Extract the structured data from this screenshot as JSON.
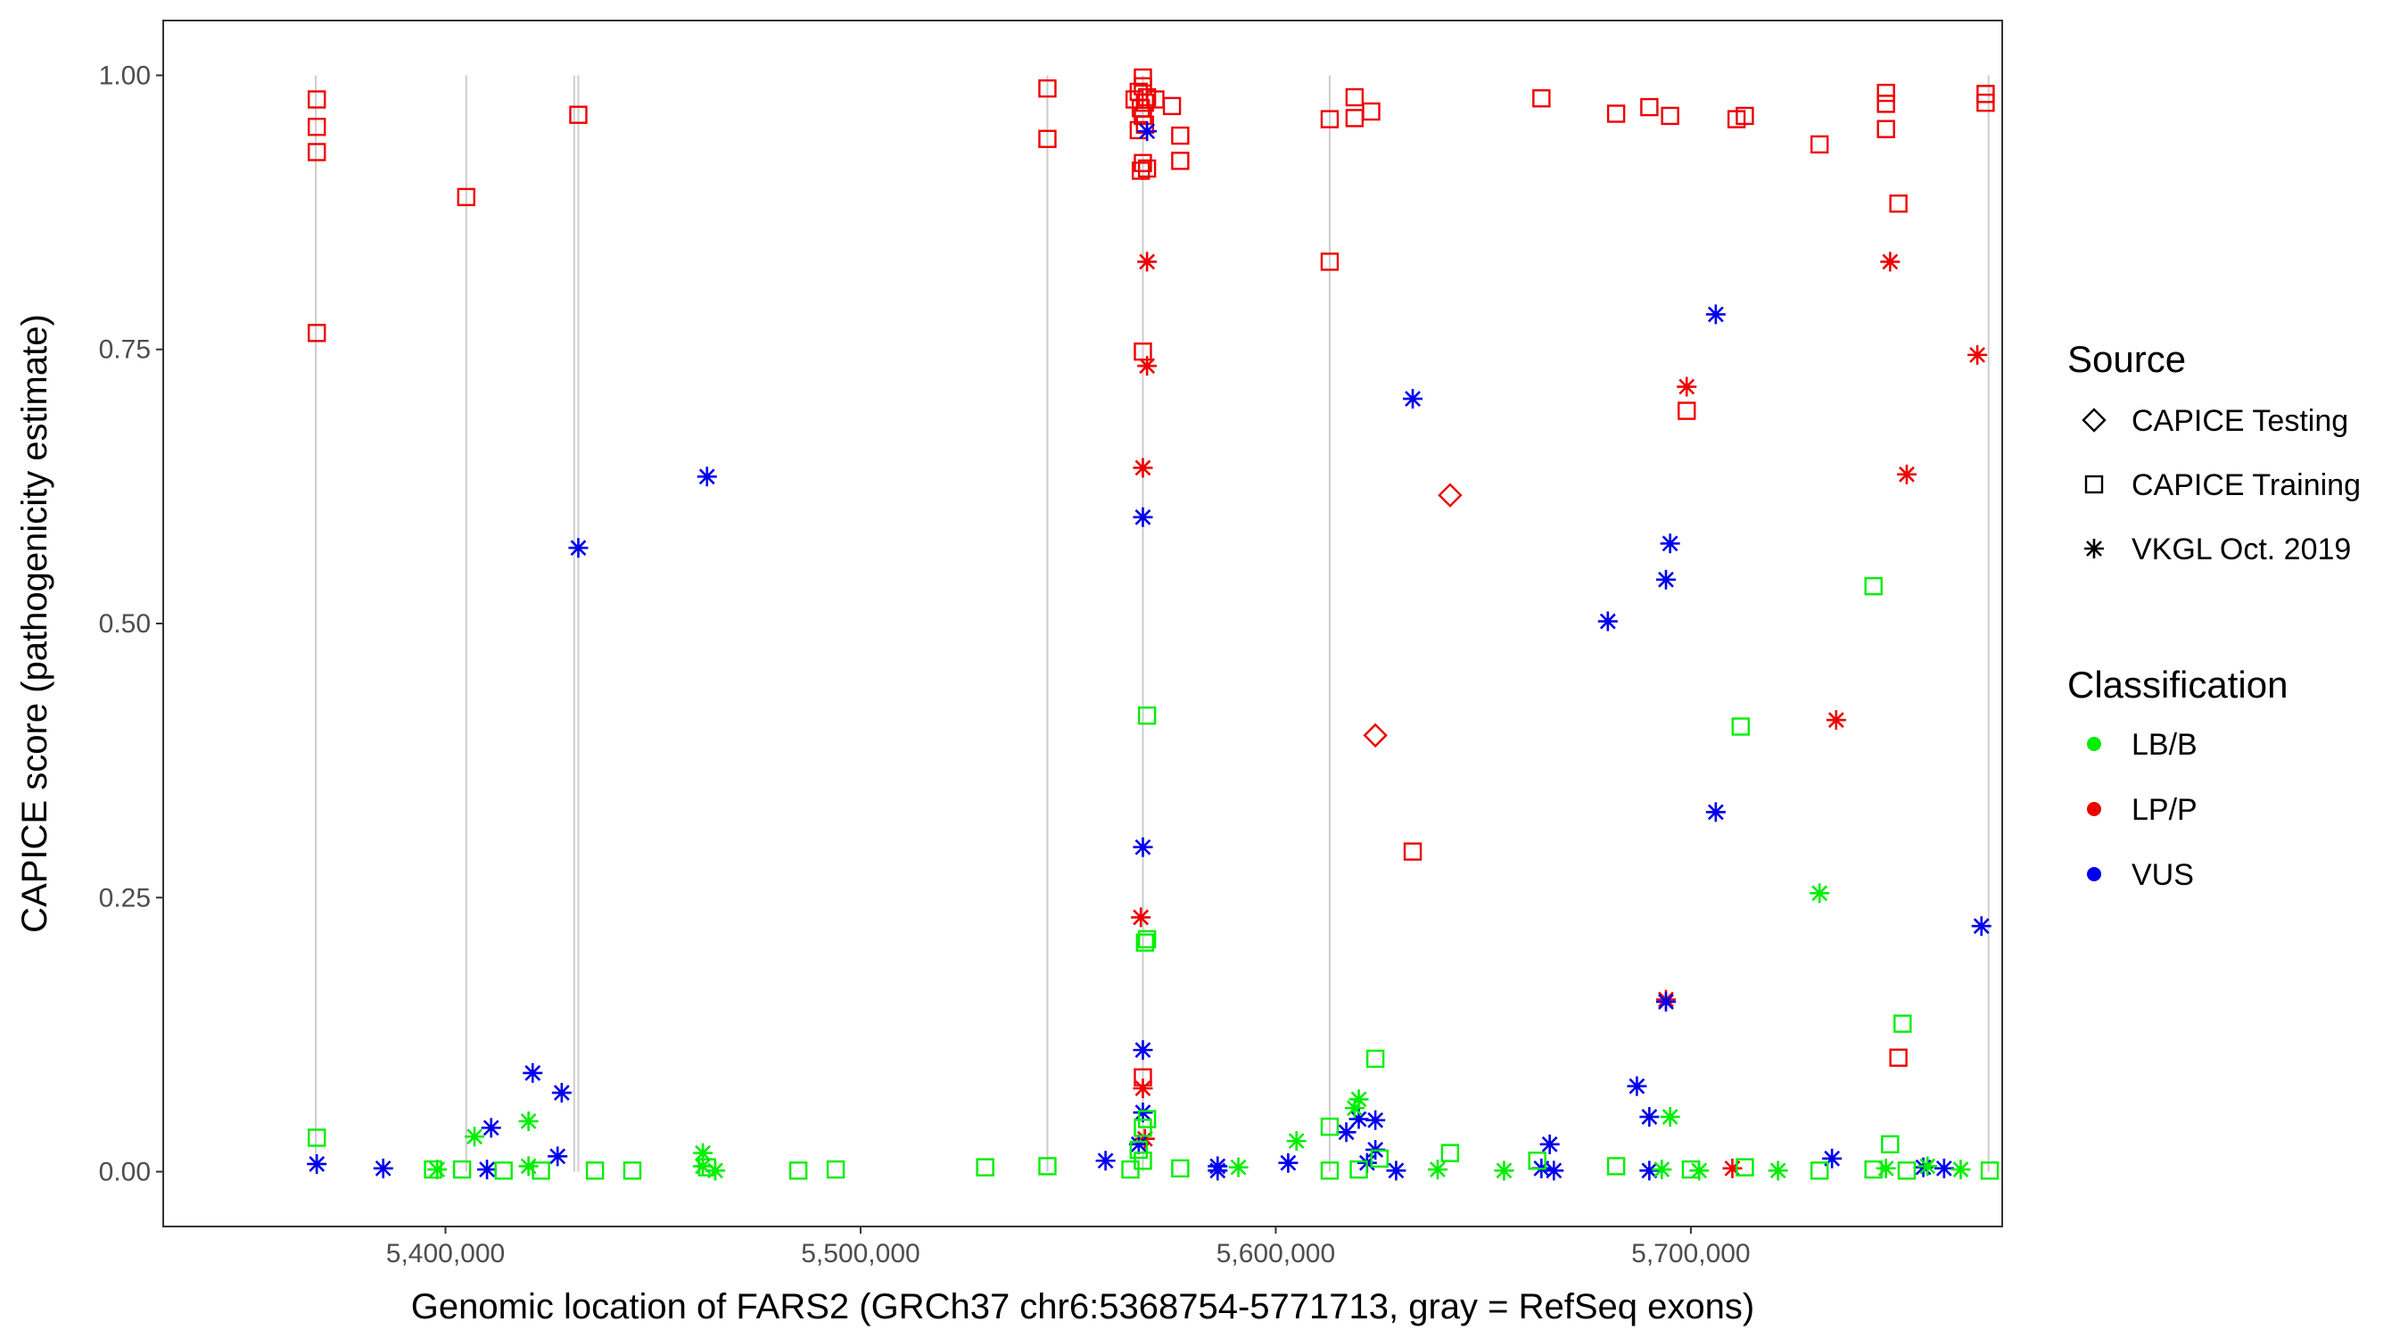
{
  "chart_data": {
    "type": "scatter",
    "xlabel": "Genomic location of FARS2 (GRCh37 chr6:5368754-5771713, gray = RefSeq exons)",
    "ylabel": "CAPICE score (pathogenicity estimate)",
    "xlim": [
      5332000,
      5775000
    ],
    "ylim": [
      -0.05,
      1.05
    ],
    "xticks": [
      5400000,
      5500000,
      5600000,
      5700000
    ],
    "xtick_labels": [
      "5,400,000",
      "5,500,000",
      "5,600,000",
      "5,700,000"
    ],
    "yticks": [
      0,
      0.25,
      0.5,
      0.75,
      1
    ],
    "ytick_labels": [
      "0.00",
      "0.25",
      "0.50",
      "0.75",
      "1.00"
    ],
    "exon_positions": [
      5368754,
      5405000,
      5431000,
      5432000,
      5545000,
      5568000,
      5613000,
      5771713
    ],
    "legend": {
      "source_title": "Source",
      "source_items": [
        {
          "key": "testing",
          "label": "CAPICE Testing",
          "shape": "diamond"
        },
        {
          "key": "training",
          "label": "CAPICE Training",
          "shape": "square"
        },
        {
          "key": "vkgl",
          "label": "VKGL Oct. 2019",
          "shape": "asterisk"
        }
      ],
      "class_title": "Classification",
      "class_items": [
        {
          "key": "LB/B",
          "label": "LB/B",
          "color": "#00ee00"
        },
        {
          "key": "LP/P",
          "label": "LP/P",
          "color": "#ee0000"
        },
        {
          "key": "VUS",
          "label": "VUS",
          "color": "#0000ee"
        }
      ]
    },
    "colors": {
      "LB/B": "#00ee00",
      "LP/P": "#ee0000",
      "VUS": "#0000ee",
      "exon": "#cccccc"
    },
    "points": [
      [
        5369000,
        0.978,
        "training",
        "LP/P"
      ],
      [
        5369000,
        0.953,
        "training",
        "LP/P"
      ],
      [
        5369000,
        0.93,
        "training",
        "LP/P"
      ],
      [
        5369000,
        0.765,
        "training",
        "LP/P"
      ],
      [
        5405000,
        0.889,
        "training",
        "LP/P"
      ],
      [
        5432000,
        0.964,
        "training",
        "LP/P"
      ],
      [
        5545000,
        0.988,
        "training",
        "LP/P"
      ],
      [
        5545000,
        0.942,
        "training",
        "LP/P"
      ],
      [
        5566000,
        0.978,
        "training",
        "LP/P"
      ],
      [
        5567000,
        0.985,
        "training",
        "LP/P"
      ],
      [
        5568000,
        0.998,
        "training",
        "LP/P"
      ],
      [
        5568000,
        0.99,
        "training",
        "LP/P"
      ],
      [
        5568500,
        0.975,
        "training",
        "LP/P"
      ],
      [
        5567500,
        0.97,
        "training",
        "LP/P"
      ],
      [
        5569000,
        0.98,
        "training",
        "LP/P"
      ],
      [
        5568000,
        0.963,
        "training",
        "LP/P"
      ],
      [
        5567000,
        0.95,
        "training",
        "LP/P"
      ],
      [
        5568500,
        0.955,
        "training",
        "LP/P"
      ],
      [
        5568000,
        0.92,
        "training",
        "LP/P"
      ],
      [
        5569000,
        0.915,
        "training",
        "LP/P"
      ],
      [
        5567500,
        0.913,
        "training",
        "LP/P"
      ],
      [
        5571000,
        0.978,
        "training",
        "LP/P"
      ],
      [
        5575000,
        0.972,
        "training",
        "LP/P"
      ],
      [
        5577000,
        0.945,
        "training",
        "LP/P"
      ],
      [
        5577000,
        0.922,
        "training",
        "LP/P"
      ],
      [
        5568000,
        0.748,
        "training",
        "LP/P"
      ],
      [
        5613000,
        0.96,
        "training",
        "LP/P"
      ],
      [
        5619000,
        0.98,
        "training",
        "LP/P"
      ],
      [
        5619000,
        0.961,
        "training",
        "LP/P"
      ],
      [
        5623000,
        0.967,
        "training",
        "LP/P"
      ],
      [
        5613000,
        0.83,
        "training",
        "LP/P"
      ],
      [
        5664000,
        0.979,
        "training",
        "LP/P"
      ],
      [
        5682000,
        0.965,
        "training",
        "LP/P"
      ],
      [
        5690000,
        0.971,
        "training",
        "LP/P"
      ],
      [
        5695000,
        0.963,
        "training",
        "LP/P"
      ],
      [
        5711000,
        0.96,
        "training",
        "LP/P"
      ],
      [
        5713000,
        0.963,
        "training",
        "LP/P"
      ],
      [
        5699000,
        0.694,
        "training",
        "LP/P"
      ],
      [
        5731000,
        0.937,
        "training",
        "LP/P"
      ],
      [
        5747000,
        0.984,
        "training",
        "LP/P"
      ],
      [
        5747000,
        0.974,
        "training",
        "LP/P"
      ],
      [
        5747000,
        0.951,
        "training",
        "LP/P"
      ],
      [
        5750000,
        0.883,
        "training",
        "LP/P"
      ],
      [
        5771000,
        0.983,
        "training",
        "LP/P"
      ],
      [
        5771000,
        0.975,
        "training",
        "LP/P"
      ],
      [
        5633000,
        0.292,
        "training",
        "LP/P"
      ],
      [
        5568000,
        0.086,
        "training",
        "LP/P"
      ],
      [
        5750000,
        0.104,
        "training",
        "LP/P"
      ],
      [
        5569000,
        0.83,
        "vkgl",
        "LP/P"
      ],
      [
        5569000,
        0.735,
        "vkgl",
        "LP/P"
      ],
      [
        5568000,
        0.642,
        "vkgl",
        "LP/P"
      ],
      [
        5567500,
        0.232,
        "vkgl",
        "LP/P"
      ],
      [
        5568000,
        0.076,
        "vkgl",
        "LP/P"
      ],
      [
        5568500,
        0.03,
        "vkgl",
        "LP/P"
      ],
      [
        5699000,
        0.716,
        "vkgl",
        "LP/P"
      ],
      [
        5748000,
        0.83,
        "vkgl",
        "LP/P"
      ],
      [
        5752000,
        0.636,
        "vkgl",
        "LP/P"
      ],
      [
        5769000,
        0.745,
        "vkgl",
        "LP/P"
      ],
      [
        5735000,
        0.412,
        "vkgl",
        "LP/P"
      ],
      [
        5694000,
        0.157,
        "vkgl",
        "LP/P"
      ],
      [
        5710000,
        0.003,
        "vkgl",
        "LP/P"
      ],
      [
        5642000,
        0.617,
        "testing",
        "LP/P"
      ],
      [
        5624000,
        0.398,
        "testing",
        "LP/P"
      ],
      [
        5569000,
        0.949,
        "vkgl",
        "VUS"
      ],
      [
        5568000,
        0.597,
        "vkgl",
        "VUS"
      ],
      [
        5568000,
        0.296,
        "vkgl",
        "VUS"
      ],
      [
        5568000,
        0.111,
        "vkgl",
        "VUS"
      ],
      [
        5568000,
        0.054,
        "vkgl",
        "VUS"
      ],
      [
        5567000,
        0.025,
        "vkgl",
        "VUS"
      ],
      [
        5463000,
        0.634,
        "vkgl",
        "VUS"
      ],
      [
        5432000,
        0.569,
        "vkgl",
        "VUS"
      ],
      [
        5633000,
        0.705,
        "vkgl",
        "VUS"
      ],
      [
        5706000,
        0.782,
        "vkgl",
        "VUS"
      ],
      [
        5695000,
        0.573,
        "vkgl",
        "VUS"
      ],
      [
        5694000,
        0.54,
        "vkgl",
        "VUS"
      ],
      [
        5680000,
        0.502,
        "vkgl",
        "VUS"
      ],
      [
        5706000,
        0.328,
        "vkgl",
        "VUS"
      ],
      [
        5770000,
        0.224,
        "vkgl",
        "VUS"
      ],
      [
        5694000,
        0.155,
        "vkgl",
        "VUS"
      ],
      [
        5687000,
        0.078,
        "vkgl",
        "VUS"
      ],
      [
        5690000,
        0.05,
        "vkgl",
        "VUS"
      ],
      [
        5421000,
        0.09,
        "vkgl",
        "VUS"
      ],
      [
        5428000,
        0.072,
        "vkgl",
        "VUS"
      ],
      [
        5411000,
        0.04,
        "vkgl",
        "VUS"
      ],
      [
        5427000,
        0.014,
        "vkgl",
        "VUS"
      ],
      [
        5369000,
        0.007,
        "vkgl",
        "VUS"
      ],
      [
        5385000,
        0.003,
        "vkgl",
        "VUS"
      ],
      [
        5410000,
        0.002,
        "vkgl",
        "VUS"
      ],
      [
        5617000,
        0.036,
        "vkgl",
        "VUS"
      ],
      [
        5620000,
        0.048,
        "vkgl",
        "VUS"
      ],
      [
        5624000,
        0.047,
        "vkgl",
        "VUS"
      ],
      [
        5624000,
        0.02,
        "vkgl",
        "VUS"
      ],
      [
        5622000,
        0.008,
        "vkgl",
        "VUS"
      ],
      [
        5603000,
        0.008,
        "vkgl",
        "VUS"
      ],
      [
        5586000,
        0.005,
        "vkgl",
        "VUS"
      ],
      [
        5586000,
        0.001,
        "vkgl",
        "VUS"
      ],
      [
        5559000,
        0.01,
        "vkgl",
        "VUS"
      ],
      [
        5666000,
        0.025,
        "vkgl",
        "VUS"
      ],
      [
        5664000,
        0.003,
        "vkgl",
        "VUS"
      ],
      [
        5667000,
        0.001,
        "vkgl",
        "VUS"
      ],
      [
        5734000,
        0.012,
        "vkgl",
        "VUS"
      ],
      [
        5756000,
        0.004,
        "vkgl",
        "VUS"
      ],
      [
        5761000,
        0.003,
        "vkgl",
        "VUS"
      ],
      [
        5629000,
        0.001,
        "vkgl",
        "VUS"
      ],
      [
        5690000,
        0.001,
        "vkgl",
        "VUS"
      ],
      [
        5369000,
        0.031,
        "training",
        "LB/B"
      ],
      [
        5569000,
        0.416,
        "training",
        "LB/B"
      ],
      [
        5569000,
        0.212,
        "training",
        "LB/B"
      ],
      [
        5568500,
        0.209,
        "training",
        "LB/B"
      ],
      [
        5569000,
        0.048,
        "training",
        "LB/B"
      ],
      [
        5568000,
        0.04,
        "training",
        "LB/B"
      ],
      [
        5567000,
        0.02,
        "training",
        "LB/B"
      ],
      [
        5568000,
        0.01,
        "training",
        "LB/B"
      ],
      [
        5744000,
        0.534,
        "training",
        "LB/B"
      ],
      [
        5712000,
        0.406,
        "training",
        "LB/B"
      ],
      [
        5751000,
        0.135,
        "training",
        "LB/B"
      ],
      [
        5624000,
        0.103,
        "training",
        "LB/B"
      ],
      [
        5613000,
        0.041,
        "training",
        "LB/B"
      ],
      [
        5642000,
        0.017,
        "training",
        "LB/B"
      ],
      [
        5748000,
        0.025,
        "training",
        "LB/B"
      ],
      [
        5625000,
        0.012,
        "training",
        "LB/B"
      ],
      [
        5397000,
        0.002,
        "training",
        "LB/B"
      ],
      [
        5404000,
        0.002,
        "training",
        "LB/B"
      ],
      [
        5414000,
        0.001,
        "training",
        "LB/B"
      ],
      [
        5423000,
        0.001,
        "training",
        "LB/B"
      ],
      [
        5436000,
        0.001,
        "training",
        "LB/B"
      ],
      [
        5445000,
        0.001,
        "training",
        "LB/B"
      ],
      [
        5463000,
        0.004,
        "training",
        "LB/B"
      ],
      [
        5485000,
        0.001,
        "training",
        "LB/B"
      ],
      [
        5494000,
        0.002,
        "training",
        "LB/B"
      ],
      [
        5530000,
        0.004,
        "training",
        "LB/B"
      ],
      [
        5545000,
        0.005,
        "training",
        "LB/B"
      ],
      [
        5565000,
        0.002,
        "training",
        "LB/B"
      ],
      [
        5577000,
        0.003,
        "training",
        "LB/B"
      ],
      [
        5613000,
        0.001,
        "training",
        "LB/B"
      ],
      [
        5620000,
        0.002,
        "training",
        "LB/B"
      ],
      [
        5663000,
        0.01,
        "training",
        "LB/B"
      ],
      [
        5682000,
        0.005,
        "training",
        "LB/B"
      ],
      [
        5700000,
        0.002,
        "training",
        "LB/B"
      ],
      [
        5713000,
        0.004,
        "training",
        "LB/B"
      ],
      [
        5731000,
        0.001,
        "training",
        "LB/B"
      ],
      [
        5744000,
        0.002,
        "training",
        "LB/B"
      ],
      [
        5752000,
        0.001,
        "training",
        "LB/B"
      ],
      [
        5772000,
        0.001,
        "training",
        "LB/B"
      ],
      [
        5731000,
        0.254,
        "vkgl",
        "LB/B"
      ],
      [
        5620000,
        0.066,
        "vkgl",
        "LB/B"
      ],
      [
        5619000,
        0.058,
        "vkgl",
        "LB/B"
      ],
      [
        5605000,
        0.028,
        "vkgl",
        "LB/B"
      ],
      [
        5420000,
        0.046,
        "vkgl",
        "LB/B"
      ],
      [
        5407000,
        0.032,
        "vkgl",
        "LB/B"
      ],
      [
        5462000,
        0.017,
        "vkgl",
        "LB/B"
      ],
      [
        5695000,
        0.05,
        "vkgl",
        "LB/B"
      ],
      [
        5420000,
        0.005,
        "vkgl",
        "LB/B"
      ],
      [
        5462000,
        0.005,
        "vkgl",
        "LB/B"
      ],
      [
        5465000,
        0.001,
        "vkgl",
        "LB/B"
      ],
      [
        5398000,
        0.002,
        "vkgl",
        "LB/B"
      ],
      [
        5591000,
        0.004,
        "vkgl",
        "LB/B"
      ],
      [
        5639000,
        0.002,
        "vkgl",
        "LB/B"
      ],
      [
        5655000,
        0.001,
        "vkgl",
        "LB/B"
      ],
      [
        5693000,
        0.002,
        "vkgl",
        "LB/B"
      ],
      [
        5702000,
        0.001,
        "vkgl",
        "LB/B"
      ],
      [
        5721000,
        0.001,
        "vkgl",
        "LB/B"
      ],
      [
        5747000,
        0.003,
        "vkgl",
        "LB/B"
      ],
      [
        5757000,
        0.005,
        "vkgl",
        "LB/B"
      ],
      [
        5765000,
        0.002,
        "vkgl",
        "LB/B"
      ]
    ]
  }
}
